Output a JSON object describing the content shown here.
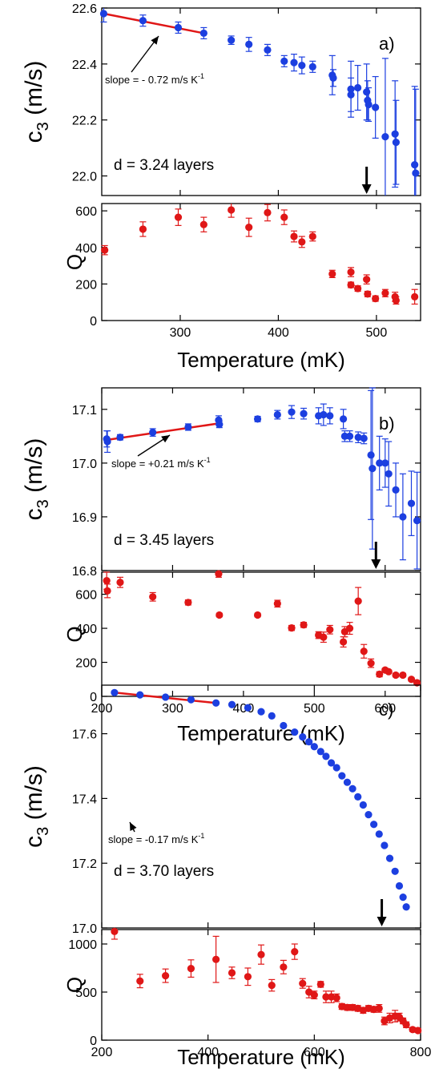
{
  "colors": {
    "c3": "#1c3fe0",
    "q": "#e01717",
    "fit": "#e01717",
    "axis": "#000000"
  },
  "chart_data": [
    {
      "panel": "a)",
      "shared_xlabel": "Temperature (mK)",
      "xlim": [
        220,
        545
      ],
      "xticks": [
        300,
        400,
        500
      ],
      "xticklabels": [
        "300",
        "400",
        "500"
      ],
      "thickness_label": "d = 3.24 layers",
      "slope_label": "slope = - 0.72 m/s K",
      "slope_exponent": "-1",
      "transition_arrow_x": 490,
      "top": {
        "type": "scatter",
        "ylabel": "c3 (m/s)",
        "ylim": [
          21.93,
          22.6
        ],
        "yticks": [
          22.0,
          22.2,
          22.4,
          22.6
        ],
        "yticklabels": [
          "22.0",
          "22.2",
          "22.4",
          "22.6"
        ],
        "points": [
          {
            "x": 222,
            "y": 22.58,
            "err": 0.03
          },
          {
            "x": 262,
            "y": 22.555,
            "err": 0.02
          },
          {
            "x": 298,
            "y": 22.53,
            "err": 0.02
          },
          {
            "x": 324,
            "y": 22.51,
            "err": 0.02
          },
          {
            "x": 352,
            "y": 22.485,
            "err": 0.015
          },
          {
            "x": 370,
            "y": 22.47,
            "err": 0.025
          },
          {
            "x": 389,
            "y": 22.45,
            "err": 0.02
          },
          {
            "x": 406,
            "y": 22.41,
            "err": 0.02
          },
          {
            "x": 416,
            "y": 22.405,
            "err": 0.03
          },
          {
            "x": 424,
            "y": 22.395,
            "err": 0.03
          },
          {
            "x": 435,
            "y": 22.39,
            "err": 0.02
          },
          {
            "x": 455,
            "y": 22.36,
            "err": 0.07
          },
          {
            "x": 456,
            "y": 22.35,
            "err": 0.03
          },
          {
            "x": 474,
            "y": 22.31,
            "err": 0.1
          },
          {
            "x": 474,
            "y": 22.29,
            "err": 0.06
          },
          {
            "x": 481,
            "y": 22.315,
            "err": 0.08
          },
          {
            "x": 490,
            "y": 22.3,
            "err": 0.1
          },
          {
            "x": 491,
            "y": 22.27,
            "err": 0.07
          },
          {
            "x": 492,
            "y": 22.255,
            "err": 0.06
          },
          {
            "x": 499,
            "y": 22.245,
            "err": 0.11
          },
          {
            "x": 509,
            "y": 22.14,
            "err": 0.28
          },
          {
            "x": 519,
            "y": 22.15,
            "err": 0.19
          },
          {
            "x": 520,
            "y": 22.12,
            "err": 0.15
          },
          {
            "x": 539,
            "y": 22.04,
            "err": 0.28
          },
          {
            "x": 540,
            "y": 22.01,
            "err": 0.3
          }
        ],
        "fit": {
          "x": [
            222,
            324
          ],
          "y": [
            22.58,
            22.51
          ]
        }
      },
      "bottom": {
        "type": "scatter",
        "ylabel": "Q",
        "ylim": [
          0,
          640
        ],
        "yticks": [
          0,
          200,
          400,
          600
        ],
        "yticklabels": [
          "0",
          "200",
          "400",
          "600"
        ],
        "points": [
          {
            "x": 223,
            "y": 385,
            "err": 25
          },
          {
            "x": 262,
            "y": 500,
            "err": 40
          },
          {
            "x": 298,
            "y": 565,
            "err": 45
          },
          {
            "x": 324,
            "y": 525,
            "err": 40
          },
          {
            "x": 352,
            "y": 605,
            "err": 40
          },
          {
            "x": 370,
            "y": 510,
            "err": 50
          },
          {
            "x": 389,
            "y": 590,
            "err": 45
          },
          {
            "x": 406,
            "y": 565,
            "err": 40
          },
          {
            "x": 416,
            "y": 460,
            "err": 30
          },
          {
            "x": 424,
            "y": 430,
            "err": 30
          },
          {
            "x": 435,
            "y": 460,
            "err": 25
          },
          {
            "x": 455,
            "y": 255,
            "err": 20
          },
          {
            "x": 474,
            "y": 265,
            "err": 25
          },
          {
            "x": 474,
            "y": 195,
            "err": 15
          },
          {
            "x": 481,
            "y": 175,
            "err": 15
          },
          {
            "x": 490,
            "y": 225,
            "err": 25
          },
          {
            "x": 491,
            "y": 145,
            "err": 15
          },
          {
            "x": 499,
            "y": 120,
            "err": 15
          },
          {
            "x": 509,
            "y": 150,
            "err": 20
          },
          {
            "x": 519,
            "y": 130,
            "err": 25
          },
          {
            "x": 520,
            "y": 110,
            "err": 20
          },
          {
            "x": 539,
            "y": 130,
            "err": 40
          }
        ]
      }
    },
    {
      "panel": "b)",
      "shared_xlabel": "Temperature (mK)",
      "xlim": [
        200,
        650
      ],
      "xticks": [
        200,
        300,
        400,
        500,
        600
      ],
      "xticklabels": [
        "200",
        "300",
        "400",
        "500",
        "600"
      ],
      "thickness_label": "d = 3.45 layers",
      "slope_label": "slope = +0.21 m/s K",
      "slope_exponent": "-1",
      "transition_arrow_x": 587,
      "top": {
        "type": "scatter",
        "ylabel": "c3 (m/s)",
        "ylim": [
          16.8,
          17.14
        ],
        "yticks": [
          16.8,
          16.9,
          17.0,
          17.1
        ],
        "yticklabels": [
          "16.8",
          "16.9",
          "17.0",
          "17.1"
        ],
        "points": [
          {
            "x": 207,
            "y": 17.045,
            "err": 0.015
          },
          {
            "x": 208,
            "y": 17.04,
            "err": 0.02
          },
          {
            "x": 226,
            "y": 17.048,
            "err": 0.005
          },
          {
            "x": 272,
            "y": 17.057,
            "err": 0.007
          },
          {
            "x": 322,
            "y": 17.067,
            "err": 0.006
          },
          {
            "x": 365,
            "y": 17.08,
            "err": 0.008
          },
          {
            "x": 366,
            "y": 17.072,
            "err": 0.006
          },
          {
            "x": 420,
            "y": 17.082,
            "err": 0.005
          },
          {
            "x": 448,
            "y": 17.09,
            "err": 0.008
          },
          {
            "x": 468,
            "y": 17.095,
            "err": 0.012
          },
          {
            "x": 485,
            "y": 17.092,
            "err": 0.01
          },
          {
            "x": 506,
            "y": 17.088,
            "err": 0.015
          },
          {
            "x": 513,
            "y": 17.09,
            "err": 0.02
          },
          {
            "x": 522,
            "y": 17.088,
            "err": 0.015
          },
          {
            "x": 541,
            "y": 17.082,
            "err": 0.018
          },
          {
            "x": 543,
            "y": 17.05,
            "err": 0.01
          },
          {
            "x": 550,
            "y": 17.05,
            "err": 0.01
          },
          {
            "x": 562,
            "y": 17.048,
            "err": 0.01
          },
          {
            "x": 570,
            "y": 17.046,
            "err": 0.01
          },
          {
            "x": 580,
            "y": 17.015,
            "err": 0.12
          },
          {
            "x": 582,
            "y": 16.99,
            "err": 0.15
          },
          {
            "x": 592,
            "y": 17.0,
            "err": 0.05
          },
          {
            "x": 600,
            "y": 17.0,
            "err": 0.045
          },
          {
            "x": 605,
            "y": 16.98,
            "err": 0.06
          },
          {
            "x": 615,
            "y": 16.95,
            "err": 0.05
          },
          {
            "x": 625,
            "y": 16.9,
            "err": 0.08
          },
          {
            "x": 637,
            "y": 16.925,
            "err": 0.06
          },
          {
            "x": 645,
            "y": 16.893,
            "err": 0.09
          }
        ],
        "fit": {
          "x": [
            207,
            366
          ],
          "y": [
            17.043,
            17.074
          ]
        }
      },
      "bottom": {
        "type": "scatter",
        "ylabel": "Q",
        "ylim": [
          0,
          730
        ],
        "yticks": [
          0,
          200,
          400,
          600
        ],
        "yticklabels": [
          "0",
          "200",
          "400",
          "600"
        ],
        "points": [
          {
            "x": 207,
            "y": 680,
            "err": 50
          },
          {
            "x": 208,
            "y": 620,
            "err": 40
          },
          {
            "x": 226,
            "y": 670,
            "err": 30
          },
          {
            "x": 272,
            "y": 585,
            "err": 25
          },
          {
            "x": 322,
            "y": 552,
            "err": 15
          },
          {
            "x": 365,
            "y": 720,
            "err": 20
          },
          {
            "x": 366,
            "y": 478,
            "err": 10
          },
          {
            "x": 420,
            "y": 478,
            "err": 10
          },
          {
            "x": 448,
            "y": 545,
            "err": 20
          },
          {
            "x": 468,
            "y": 402,
            "err": 15
          },
          {
            "x": 485,
            "y": 420,
            "err": 15
          },
          {
            "x": 506,
            "y": 360,
            "err": 20
          },
          {
            "x": 513,
            "y": 348,
            "err": 30
          },
          {
            "x": 522,
            "y": 392,
            "err": 25
          },
          {
            "x": 541,
            "y": 320,
            "err": 30
          },
          {
            "x": 543,
            "y": 380,
            "err": 30
          },
          {
            "x": 550,
            "y": 400,
            "err": 35
          },
          {
            "x": 562,
            "y": 560,
            "err": 80
          },
          {
            "x": 570,
            "y": 265,
            "err": 40
          },
          {
            "x": 580,
            "y": 195,
            "err": 25
          },
          {
            "x": 592,
            "y": 130,
            "err": 15
          },
          {
            "x": 600,
            "y": 155,
            "err": 10
          },
          {
            "x": 605,
            "y": 145,
            "err": 10
          },
          {
            "x": 615,
            "y": 125,
            "err": 10
          },
          {
            "x": 625,
            "y": 125,
            "err": 10
          },
          {
            "x": 637,
            "y": 100,
            "err": 10
          },
          {
            "x": 645,
            "y": 80,
            "err": 10
          }
        ]
      }
    },
    {
      "panel": "c)",
      "shared_xlabel": "Temperature (mK)",
      "xlim": [
        200,
        800
      ],
      "xticks": [
        200,
        400,
        600,
        800
      ],
      "xticklabels": [
        "200",
        "400",
        "600",
        "800"
      ],
      "thickness_label": "d = 3.70 layers",
      "slope_label": "slope = -0.17 m/s K",
      "slope_exponent": "-1",
      "transition_arrow_x": 727,
      "top": {
        "type": "scatter",
        "ylabel": "c3 (m/s)",
        "ylim": [
          17.0,
          17.75
        ],
        "yticks": [
          17.0,
          17.2,
          17.4,
          17.6
        ],
        "yticklabels": [
          "17.0",
          "17.2",
          "17.4",
          "17.6"
        ],
        "points": [
          {
            "x": 224,
            "y": 17.727,
            "err": 0
          },
          {
            "x": 272,
            "y": 17.72,
            "err": 0
          },
          {
            "x": 320,
            "y": 17.713,
            "err": 0
          },
          {
            "x": 368,
            "y": 17.705,
            "err": 0
          },
          {
            "x": 415,
            "y": 17.695,
            "err": 0
          },
          {
            "x": 445,
            "y": 17.69,
            "err": 0
          },
          {
            "x": 475,
            "y": 17.68,
            "err": 0
          },
          {
            "x": 500,
            "y": 17.668,
            "err": 0
          },
          {
            "x": 520,
            "y": 17.655,
            "err": 0
          },
          {
            "x": 542,
            "y": 17.625,
            "err": 0
          },
          {
            "x": 563,
            "y": 17.605,
            "err": 0
          },
          {
            "x": 578,
            "y": 17.59,
            "err": 0
          },
          {
            "x": 590,
            "y": 17.575,
            "err": 0
          },
          {
            "x": 600,
            "y": 17.56,
            "err": 0
          },
          {
            "x": 612,
            "y": 17.545,
            "err": 0
          },
          {
            "x": 622,
            "y": 17.53,
            "err": 0
          },
          {
            "x": 632,
            "y": 17.51,
            "err": 0
          },
          {
            "x": 642,
            "y": 17.495,
            "err": 0
          },
          {
            "x": 652,
            "y": 17.47,
            "err": 0
          },
          {
            "x": 662,
            "y": 17.45,
            "err": 0
          },
          {
            "x": 672,
            "y": 17.43,
            "err": 0
          },
          {
            "x": 682,
            "y": 17.405,
            "err": 0
          },
          {
            "x": 692,
            "y": 17.38,
            "err": 0
          },
          {
            "x": 702,
            "y": 17.35,
            "err": 0
          },
          {
            "x": 712,
            "y": 17.32,
            "err": 0
          },
          {
            "x": 722,
            "y": 17.29,
            "err": 0
          },
          {
            "x": 732,
            "y": 17.255,
            "err": 0
          },
          {
            "x": 742,
            "y": 17.215,
            "err": 0
          },
          {
            "x": 752,
            "y": 17.175,
            "err": 0
          },
          {
            "x": 760,
            "y": 17.13,
            "err": 0
          },
          {
            "x": 767,
            "y": 17.095,
            "err": 0
          },
          {
            "x": 773,
            "y": 17.065,
            "err": 0
          }
        ],
        "fit": {
          "x": [
            224,
            415
          ],
          "y": [
            17.727,
            17.695
          ]
        }
      },
      "bottom": {
        "type": "scatter",
        "ylabel": "Q",
        "ylim": [
          0,
          1150
        ],
        "yticks": [
          0,
          500,
          1000
        ],
        "yticklabels": [
          "0",
          "500",
          "1000"
        ],
        "points": [
          {
            "x": 224,
            "y": 1130,
            "err": 80
          },
          {
            "x": 272,
            "y": 615,
            "err": 70
          },
          {
            "x": 320,
            "y": 670,
            "err": 70
          },
          {
            "x": 368,
            "y": 745,
            "err": 90
          },
          {
            "x": 415,
            "y": 840,
            "err": 240
          },
          {
            "x": 445,
            "y": 700,
            "err": 60
          },
          {
            "x": 475,
            "y": 660,
            "err": 90
          },
          {
            "x": 500,
            "y": 890,
            "err": 100
          },
          {
            "x": 520,
            "y": 570,
            "err": 60
          },
          {
            "x": 542,
            "y": 760,
            "err": 70
          },
          {
            "x": 563,
            "y": 920,
            "err": 80
          },
          {
            "x": 578,
            "y": 590,
            "err": 50
          },
          {
            "x": 590,
            "y": 500,
            "err": 60
          },
          {
            "x": 600,
            "y": 470,
            "err": 40
          },
          {
            "x": 612,
            "y": 580,
            "err": 30
          },
          {
            "x": 622,
            "y": 450,
            "err": 60
          },
          {
            "x": 632,
            "y": 450,
            "err": 60
          },
          {
            "x": 642,
            "y": 440,
            "err": 40
          },
          {
            "x": 652,
            "y": 350,
            "err": 30
          },
          {
            "x": 662,
            "y": 340,
            "err": 30
          },
          {
            "x": 672,
            "y": 340,
            "err": 30
          },
          {
            "x": 682,
            "y": 330,
            "err": 30
          },
          {
            "x": 692,
            "y": 310,
            "err": 30
          },
          {
            "x": 702,
            "y": 330,
            "err": 30
          },
          {
            "x": 712,
            "y": 320,
            "err": 30
          },
          {
            "x": 722,
            "y": 330,
            "err": 40
          },
          {
            "x": 732,
            "y": 200,
            "err": 40
          },
          {
            "x": 742,
            "y": 230,
            "err": 50
          },
          {
            "x": 752,
            "y": 250,
            "err": 60
          },
          {
            "x": 760,
            "y": 240,
            "err": 40
          },
          {
            "x": 767,
            "y": 200,
            "err": 30
          },
          {
            "x": 773,
            "y": 160,
            "err": 30
          },
          {
            "x": 785,
            "y": 110,
            "err": 20
          },
          {
            "x": 795,
            "y": 100,
            "err": 20
          }
        ]
      }
    }
  ]
}
